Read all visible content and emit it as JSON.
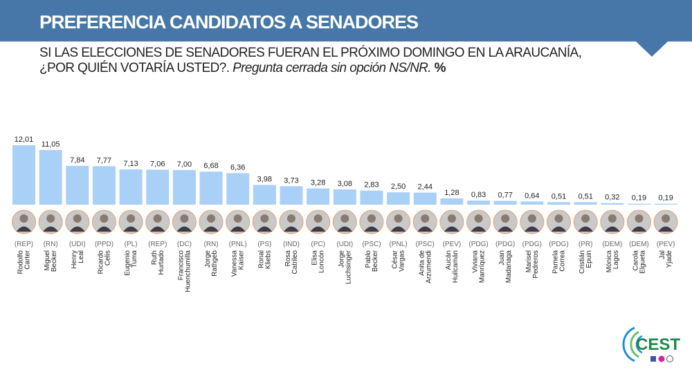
{
  "header": {
    "title": "PREFERENCIA CANDIDATOS A SENADORES"
  },
  "subtitle": {
    "line1": "SI LAS ELECCIONES DE SENADORES FUERAN EL PRÓXIMO DOMINGO EN LA ARAUCANÍA,",
    "line2_main": "¿POR QUIÉN VOTARÍA USTED?. ",
    "line2_italic": "Pregunta cerrada sin opción NS/NR.",
    "line2_unit": " %"
  },
  "colors": {
    "header": "#4677a8",
    "bar": "#a9d1f7",
    "logo_green": "#1e8a4c",
    "logo_blue": "#1a8fd6"
  },
  "logo": {
    "text": "CEST",
    "icons": [
      "facebook-icon",
      "instagram-icon",
      "whatsapp-icon"
    ]
  },
  "chart_data": {
    "type": "bar",
    "title": "",
    "xlabel": "",
    "ylabel": "",
    "ylim": [
      0,
      12.5
    ],
    "grid": false,
    "categories": [
      {
        "first": "Rodolfo",
        "last": "Carter",
        "party": "(REP)"
      },
      {
        "first": "Miguel",
        "last": "Becker",
        "party": "(RN)"
      },
      {
        "first": "Henry",
        "last": "Leal",
        "party": "(UDI)"
      },
      {
        "first": "Ricardo",
        "last": "Celis",
        "party": "(PPD)"
      },
      {
        "first": "Eugenio",
        "last": "Tuma",
        "party": "(PL)"
      },
      {
        "first": "Ruth",
        "last": "Hurtado",
        "party": "(REP)"
      },
      {
        "first": "Francisco",
        "last": "Huenchumilla",
        "party": "(DC)"
      },
      {
        "first": "Jorge",
        "last": "Rathgeb",
        "party": "(RN)"
      },
      {
        "first": "Vanessa",
        "last": "Kaiser",
        "party": "(PNL)"
      },
      {
        "first": "Ronal",
        "last": "Kliebs",
        "party": "(PS)"
      },
      {
        "first": "Rosa",
        "last": "Catrileo",
        "party": "(IND)"
      },
      {
        "first": "Elisa",
        "last": "Loncón",
        "party": "(PC)"
      },
      {
        "first": "Jorge",
        "last": "Luchsinger",
        "party": "(UDI)"
      },
      {
        "first": "Pablo",
        "last": "Becker",
        "party": "(PSC)"
      },
      {
        "first": "César",
        "last": "Vargas",
        "party": "(PNL)"
      },
      {
        "first": "Anita de",
        "last": "Arzumendi",
        "party": "(PSC)"
      },
      {
        "first": "Aucán",
        "last": "Huilcamán",
        "party": "(PEV)"
      },
      {
        "first": "Viviana",
        "last": "Manríquez",
        "party": "(PDG)"
      },
      {
        "first": "Juan",
        "last": "Madariaga",
        "party": "(PDG)"
      },
      {
        "first": "Marisel",
        "last": "Pedreros",
        "party": "(PDG)"
      },
      {
        "first": "Pamela",
        "last": "Correa",
        "party": "(PDG)"
      },
      {
        "first": "Cristián",
        "last": "Epuin",
        "party": "(PR)"
      },
      {
        "first": "Mónica",
        "last": "Lagos",
        "party": "(DEM)"
      },
      {
        "first": "Carola",
        "last": "Elgueta",
        "party": "(DEM)"
      },
      {
        "first": "Jal",
        "last": "Yjade",
        "party": "(PEV)"
      }
    ],
    "values": [
      12.01,
      11.05,
      7.84,
      7.77,
      7.13,
      7.06,
      7.0,
      6.68,
      6.36,
      3.98,
      3.73,
      3.28,
      3.08,
      2.83,
      2.5,
      2.44,
      1.28,
      0.83,
      0.77,
      0.64,
      0.51,
      0.51,
      0.32,
      0.19,
      0.19
    ],
    "labels": [
      "12,01",
      "11,05",
      "7,84",
      "7,77",
      "7,13",
      "7,06",
      "7,00",
      "6,68",
      "6,36",
      "3,98",
      "3,73",
      "3,28",
      "3,08",
      "2,83",
      "2,50",
      "2,44",
      "1,28",
      "0,83",
      "0,77",
      "0,64",
      "0,51",
      "0,51",
      "0,32",
      "0,19",
      "0,19"
    ]
  }
}
